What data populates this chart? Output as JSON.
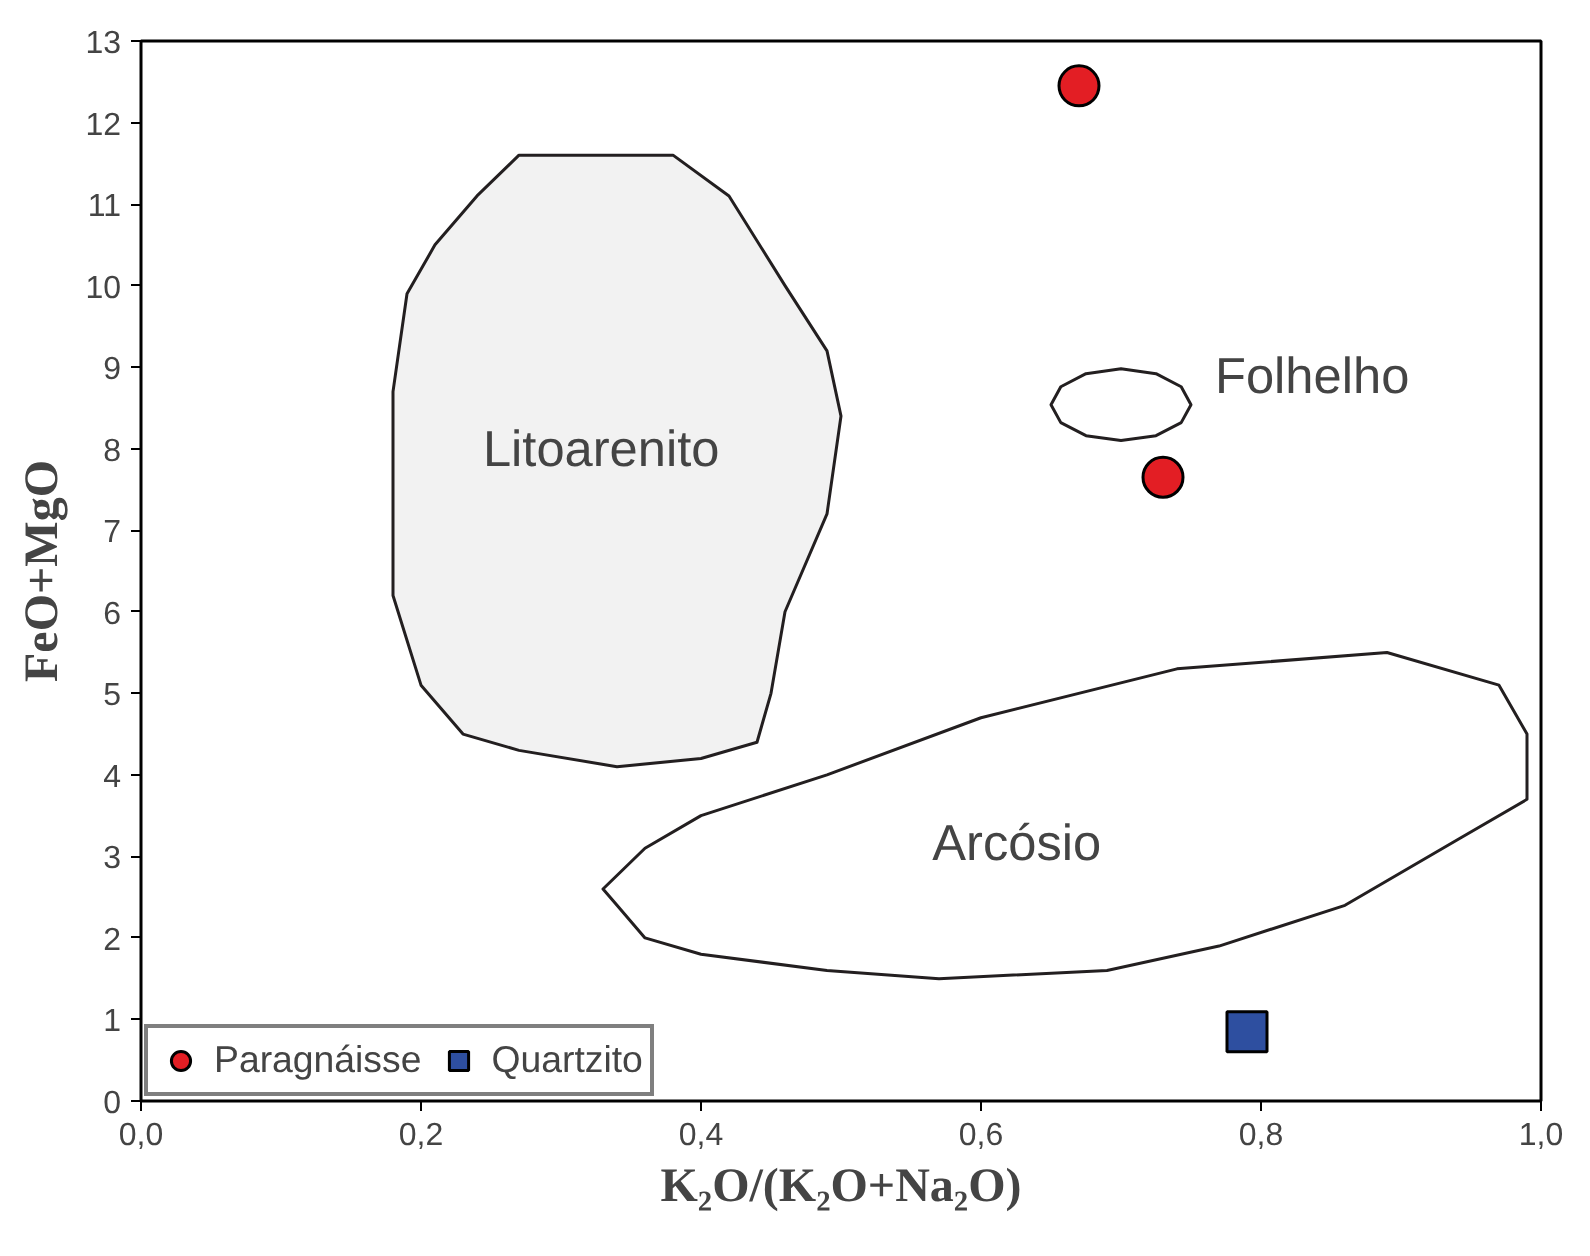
{
  "chart_data": {
    "type": "scatter",
    "xlabel": "K₂O/(K₂O+Na₂O)",
    "ylabel": "FeO+MgO",
    "xlim": [
      0,
      1
    ],
    "ylim": [
      0,
      13
    ],
    "xticks": [
      {
        "value": 0,
        "label": "0,0"
      },
      {
        "value": 0.2,
        "label": "0,2"
      },
      {
        "value": 0.4,
        "label": "0,4"
      },
      {
        "value": 0.6,
        "label": "0,6"
      },
      {
        "value": 0.8,
        "label": "0,8"
      },
      {
        "value": 1,
        "label": "1,0"
      }
    ],
    "yticks": [
      0,
      1,
      2,
      3,
      4,
      5,
      6,
      7,
      8,
      9,
      10,
      11,
      12,
      13
    ],
    "grid": false,
    "legend": "bottom left",
    "series": [
      {
        "type": "area",
        "name": "Litoarenito",
        "marker": "none",
        "color": "#f2f2f2",
        "x": [
          0.27,
          0.31,
          0.38,
          0.42,
          0.46,
          0.49,
          0.5,
          0.49,
          0.46,
          0.45,
          0.44,
          0.4,
          0.34,
          0.27,
          0.23,
          0.2,
          0.18,
          0.18,
          0.18,
          0.19,
          0.21,
          0.24,
          0.27
        ],
        "values": [
          11.6,
          11.6,
          11.6,
          11.1,
          10.0,
          9.2,
          8.4,
          7.2,
          6.0,
          5.0,
          4.4,
          4.2,
          4.1,
          4.3,
          4.5,
          5.1,
          6.2,
          7.4,
          8.7,
          9.9,
          10.5,
          11.1,
          11.6
        ]
      },
      {
        "type": "area",
        "name": "Folhelho",
        "marker": "none",
        "color": "#ffffff",
        "x": [
          0.75,
          0.743,
          0.725,
          0.7,
          0.675,
          0.657,
          0.65,
          0.657,
          0.675,
          0.7,
          0.725,
          0.743,
          0.75
        ],
        "values": [
          8.54,
          8.76,
          8.92,
          8.98,
          8.92,
          8.76,
          8.54,
          8.32,
          8.16,
          8.1,
          8.16,
          8.32,
          8.54
        ]
      },
      {
        "type": "area",
        "name": "Arcósio",
        "marker": "none",
        "color": "#ffffff",
        "x": [
          0.33,
          0.36,
          0.4,
          0.49,
          0.6,
          0.74,
          0.89,
          0.97,
          0.99,
          0.99,
          0.94,
          0.86,
          0.77,
          0.69,
          0.57,
          0.49,
          0.4,
          0.36,
          0.34,
          0.33
        ],
        "values": [
          2.6,
          3.1,
          3.5,
          4.0,
          4.7,
          5.3,
          5.5,
          5.1,
          4.5,
          3.7,
          3.2,
          2.4,
          1.9,
          1.6,
          1.5,
          1.6,
          1.8,
          2.0,
          2.4,
          2.6
        ]
      },
      {
        "name": "Paragnáisse",
        "marker": "circle",
        "color": "#e31e24",
        "x": [
          0.67,
          0.73
        ],
        "values": [
          12.45,
          7.65
        ]
      },
      {
        "name": "Quartzito",
        "marker": "square",
        "color": "#2e4fa0",
        "x": [
          0.79
        ],
        "values": [
          0.85
        ]
      }
    ]
  }
}
